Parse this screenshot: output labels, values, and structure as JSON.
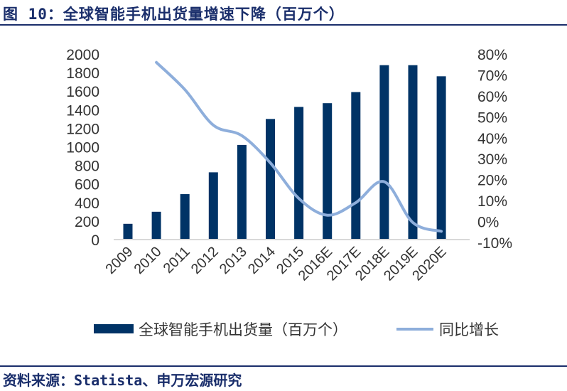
{
  "title": "图 10：全球智能手机出货量增速下降（百万个）",
  "source": "资料来源：Statista、申万宏源研究",
  "chart_data": {
    "type": "bar+line",
    "categories": [
      "2009",
      "2010",
      "2011",
      "2012",
      "2013",
      "2014",
      "2015",
      "2016E",
      "2017E",
      "2018E",
      "2019E",
      "2020E"
    ],
    "series": [
      {
        "name": "全球智能手机出货量（百万个）",
        "type": "bar",
        "axis": "left",
        "color": "#003366",
        "values": [
          170,
          300,
          490,
          725,
          1020,
          1300,
          1430,
          1470,
          1590,
          1880,
          1880,
          1760
        ]
      },
      {
        "name": "同比增长",
        "type": "line",
        "axis": "right",
        "color": "#8eaedb",
        "values": [
          null,
          76,
          63,
          46,
          41,
          28,
          11,
          3,
          9,
          19,
          -0.5,
          -4.7
        ]
      }
    ],
    "ylim_left": [
      0,
      2000
    ],
    "yticks_left": [
      "0",
      "200",
      "400",
      "600",
      "800",
      "1000",
      "1200",
      "1400",
      "1600",
      "1800",
      "2000"
    ],
    "ylim_right": [
      -10,
      80
    ],
    "yticks_right": [
      "-10%",
      "0%",
      "10%",
      "20%",
      "30%",
      "40%",
      "50%",
      "60%",
      "70%",
      "80%"
    ],
    "legend_position": "bottom",
    "grid": false
  }
}
